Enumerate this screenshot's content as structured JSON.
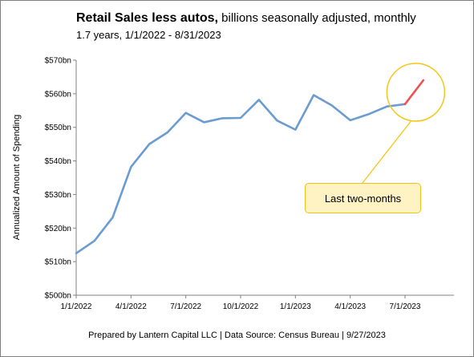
{
  "chart_data": {
    "type": "line",
    "title": "Retail Sales less autos,",
    "title_suffix": "billions seasonally adjusted, monthly",
    "subtitle": "1.7 years, 1/1/2022 - 8/31/2023",
    "ylabel": "Annualized Amount of Spending",
    "xlabel": "",
    "ylim": [
      500,
      570
    ],
    "y_ticks": [
      500,
      510,
      520,
      530,
      540,
      550,
      560,
      570
    ],
    "y_tick_labels": [
      "$500bn",
      "$510bn",
      "$520bn",
      "$530bn",
      "$540bn",
      "$550bn",
      "$560bn",
      "$570bn"
    ],
    "x_tick_labels": [
      "1/1/2022",
      "4/1/2022",
      "7/1/2022",
      "10/1/2022",
      "1/1/2023",
      "4/1/2023",
      "7/1/2023"
    ],
    "x": [
      "1/1/2022",
      "2/1/2022",
      "3/1/2022",
      "4/1/2022",
      "5/1/2022",
      "6/1/2022",
      "7/1/2022",
      "8/1/2022",
      "9/1/2022",
      "10/1/2022",
      "11/1/2022",
      "12/1/2022",
      "1/1/2023",
      "2/1/2023",
      "3/1/2023",
      "4/1/2023",
      "5/1/2023",
      "6/1/2023",
      "7/1/2023",
      "8/1/2023"
    ],
    "series": [
      {
        "values": [
          512.5,
          516.2,
          523.2,
          538.2,
          545.0,
          548.5,
          554.3,
          551.5,
          552.7,
          552.8,
          558.2,
          552.0,
          549.3,
          559.6,
          556.5,
          552.1,
          553.9,
          556.2,
          556.9,
          564.0
        ],
        "color": "#6a9bd1",
        "highlight_from_index": 18,
        "highlight_color": "#f05050"
      }
    ],
    "grid": false,
    "annotation": {
      "text": "Last two-months",
      "circle_color": "#f5c518",
      "box_fill": "#fff3c4"
    }
  },
  "footer": "Prepared by Lantern Capital LLC | Data Source: Census Bureau | 9/27/2023"
}
